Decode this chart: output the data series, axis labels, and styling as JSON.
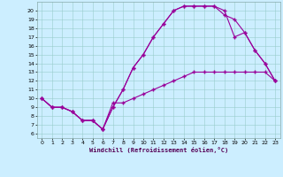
{
  "xlabel": "Windchill (Refroidissement éolien,°C)",
  "bg_color": "#cceeff",
  "line_color": "#990099",
  "xlim": [
    -0.5,
    23.5
  ],
  "ylim": [
    5.5,
    21
  ],
  "xticks": [
    0,
    1,
    2,
    3,
    4,
    5,
    6,
    7,
    8,
    9,
    10,
    11,
    12,
    13,
    14,
    15,
    16,
    17,
    18,
    19,
    20,
    21,
    22,
    23
  ],
  "yticks": [
    6,
    7,
    8,
    9,
    10,
    11,
    12,
    13,
    14,
    15,
    16,
    17,
    18,
    19,
    20
  ],
  "line1_x": [
    0,
    1,
    2,
    3,
    4,
    5,
    6,
    7,
    8,
    9,
    10,
    11,
    12,
    13,
    14,
    15,
    16,
    17,
    18,
    19,
    20,
    21,
    22,
    23
  ],
  "line1_y": [
    10,
    9,
    9,
    8.5,
    7.5,
    7.5,
    6.5,
    9.5,
    9.5,
    10,
    10.5,
    11,
    11.5,
    12,
    12.5,
    13,
    13,
    13,
    13,
    13,
    13,
    13,
    13,
    12
  ],
  "line2_x": [
    0,
    1,
    2,
    3,
    4,
    5,
    6,
    7,
    8,
    9,
    10,
    11,
    12,
    13,
    14,
    15,
    16,
    17,
    18,
    19,
    20,
    21,
    22,
    23
  ],
  "line2_y": [
    10,
    9,
    9,
    8.5,
    7.5,
    7.5,
    6.5,
    9,
    11,
    13.5,
    15,
    17,
    18.5,
    20,
    20.5,
    20.5,
    20.5,
    20.5,
    19.5,
    19,
    17.5,
    15.5,
    14,
    12
  ],
  "line3_x": [
    0,
    1,
    2,
    3,
    4,
    5,
    6,
    7,
    8,
    9,
    10,
    11,
    12,
    13,
    14,
    15,
    16,
    17,
    18,
    19,
    20,
    21,
    22,
    23
  ],
  "line3_y": [
    10,
    9,
    9,
    8.5,
    7.5,
    7.5,
    6.5,
    9,
    11,
    13.5,
    15,
    17,
    18.5,
    20,
    20.5,
    20.5,
    20.5,
    20.5,
    20,
    17,
    17.5,
    15.5,
    14,
    12
  ]
}
